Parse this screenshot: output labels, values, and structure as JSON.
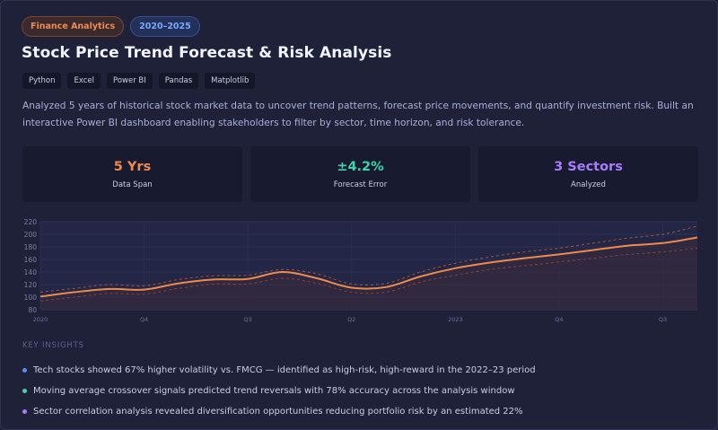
{
  "badges": [
    {
      "label": "Finance Analytics",
      "color": "#f08a4b"
    },
    {
      "label": "2020–2025",
      "color": "#7aa8ff"
    }
  ],
  "title": "Stock Price Trend Forecast & Risk Analysis",
  "tags": [
    "Python",
    "Excel",
    "Power BI",
    "Pandas",
    "Matplotlib"
  ],
  "description": "Analyzed 5 years of historical stock market data to uncover trend patterns, forecast price movements, and quantify investment risk. Built an interactive Power BI dashboard enabling stakeholders to filter by sector, time horizon, and risk tolerance.",
  "stats": [
    {
      "value": "5 Yrs",
      "label": "Data Span",
      "color": "#f08a4b"
    },
    {
      "value": "±4.2%",
      "label": "Forecast Error",
      "color": "#3ed6a8"
    },
    {
      "value": "3 Sectors",
      "label": "Analyzed",
      "color": "#a87cff"
    }
  ],
  "chart_data": {
    "type": "line",
    "ylim": [
      80,
      220
    ],
    "yticks": [
      80,
      100,
      120,
      140,
      160,
      180,
      200,
      220
    ],
    "xticks": [
      {
        "label": "2020",
        "x": 0
      },
      {
        "label": "Q4",
        "x": 3
      },
      {
        "label": "Q3",
        "x": 6
      },
      {
        "label": "Q2",
        "x": 9
      },
      {
        "label": "2023",
        "x": 12
      },
      {
        "label": "Q4",
        "x": 15
      },
      {
        "label": "Q3",
        "x": 18
      }
    ],
    "x_max": 19,
    "grid": true,
    "series": [
      {
        "role": "price",
        "color": "#f08a4b",
        "x": [
          0,
          1,
          2,
          3,
          4,
          5,
          6,
          7,
          8,
          9,
          10,
          11,
          12,
          13,
          14,
          15,
          16,
          17,
          18,
          19
        ],
        "y": [
          101,
          108,
          113,
          112,
          122,
          128,
          129,
          140,
          130,
          115,
          116,
          133,
          146,
          155,
          162,
          168,
          175,
          182,
          186,
          195
        ]
      },
      {
        "role": "upper-band",
        "color": "#c0623f",
        "x": [
          0,
          1,
          2,
          3,
          4,
          5,
          6,
          7,
          8,
          9,
          10,
          11,
          12,
          13,
          14,
          15,
          16,
          17,
          18,
          19
        ],
        "y": [
          108,
          114,
          120,
          118,
          128,
          134,
          135,
          144,
          137,
          121,
          122,
          140,
          154,
          164,
          172,
          178,
          186,
          194,
          200,
          213
        ]
      },
      {
        "role": "lower-band",
        "color": "#a04a3a",
        "x": [
          0,
          1,
          2,
          3,
          4,
          5,
          6,
          7,
          8,
          9,
          10,
          11,
          12,
          13,
          14,
          15,
          16,
          17,
          18,
          19
        ],
        "y": [
          94,
          100,
          106,
          105,
          114,
          121,
          121,
          130,
          122,
          108,
          108,
          124,
          135,
          144,
          150,
          156,
          162,
          168,
          172,
          178
        ]
      }
    ]
  },
  "insights_label": "KEY INSIGHTS",
  "insights": [
    {
      "text": "Tech stocks showed 67% higher volatility vs. FMCG — identified as high-risk, high-reward in the 2022–23 period",
      "color": "#5b8cff"
    },
    {
      "text": "Moving average crossover signals predicted trend reversals with 78% accuracy across the analysis window",
      "color": "#3ed6a8"
    },
    {
      "text": "Sector correlation analysis revealed diversification opportunities reducing portfolio risk by an estimated 22%",
      "color": "#a87cff"
    }
  ]
}
